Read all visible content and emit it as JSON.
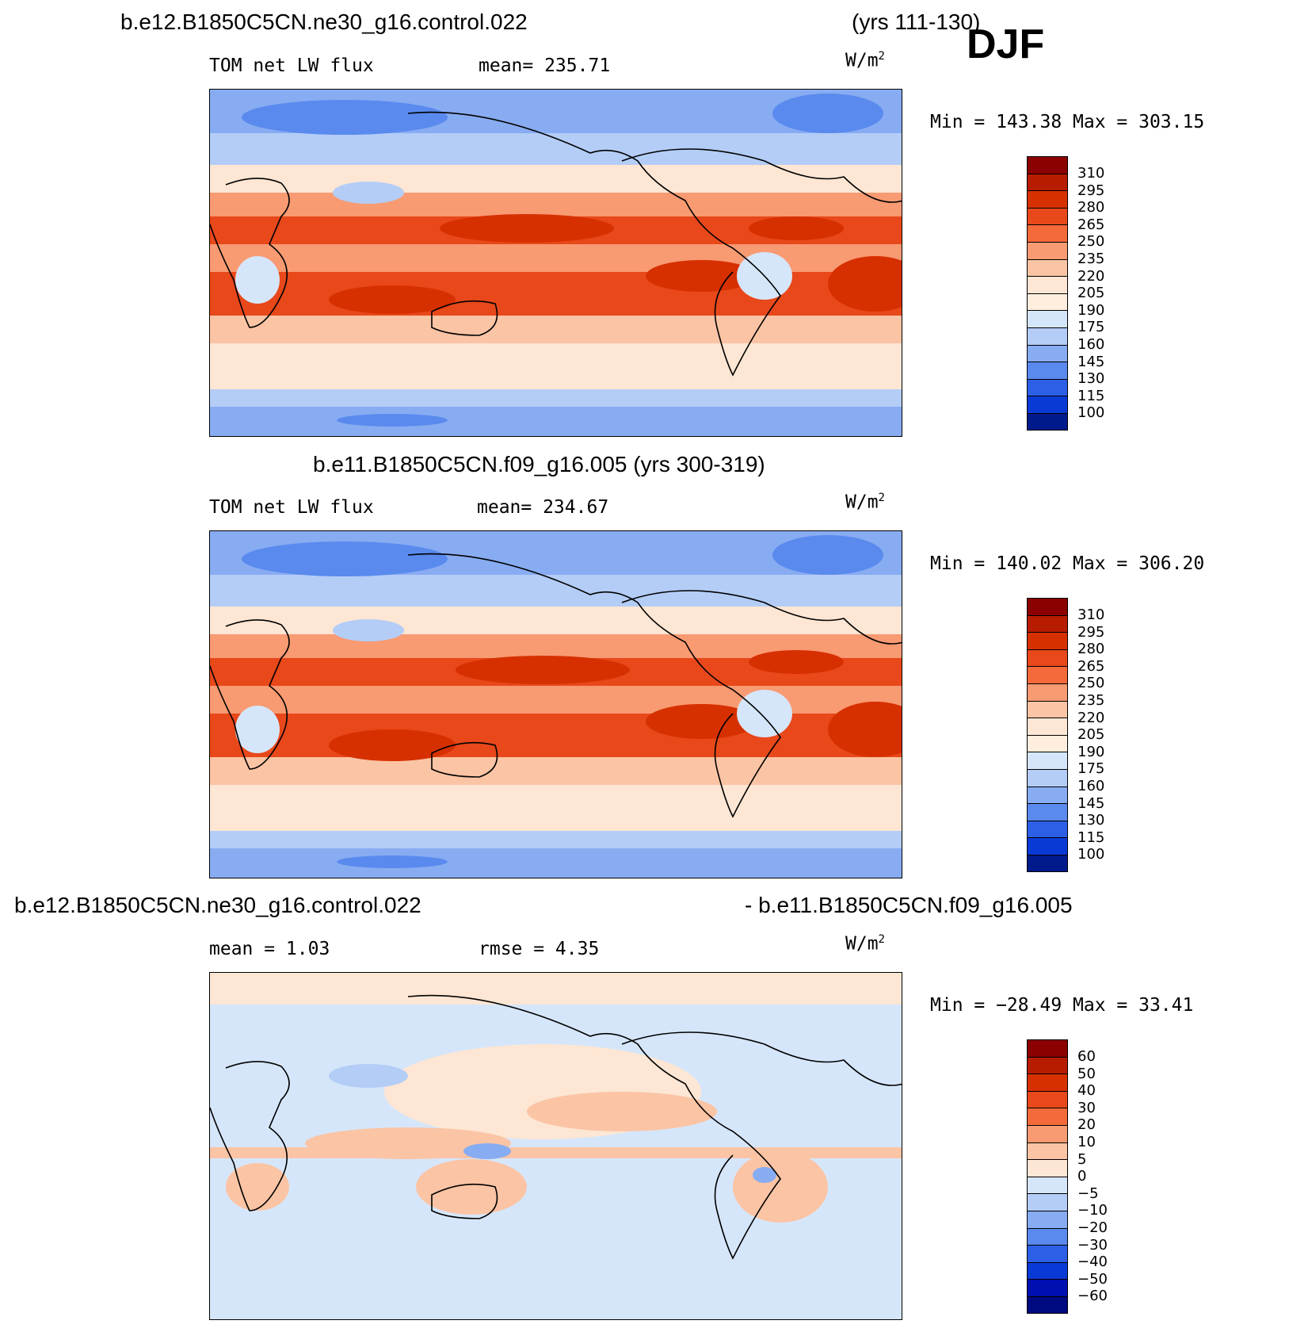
{
  "header": {
    "case1_title": "b.e12.B1850C5CN.ne30_g16.control.022",
    "case1_years": "(yrs 111-130)",
    "season": "DJF",
    "case2_title": "b.e11.B1850C5CN.f09_g16.005 (yrs 300-319)",
    "diff_title_left": "b.e12.B1850C5CN.ne30_g16.control.022",
    "diff_title_right": "- b.e11.B1850C5CN.f09_g16.005"
  },
  "panels": [
    {
      "variable": "TOM net LW flux",
      "stat_label": "mean= 235.71",
      "units_base": "W/m",
      "units_exp": "2",
      "minmax": "Min = 143.38 Max = 303.15"
    },
    {
      "variable": "TOM net LW flux",
      "stat_label": "mean= 234.67",
      "units_base": "W/m",
      "units_exp": "2",
      "minmax": "Min = 140.02 Max = 306.20"
    },
    {
      "mean_label": "mean =    1.03",
      "rmse_label": "rmse =    4.35",
      "units_base": "W/m",
      "units_exp": "2",
      "minmax": "Min = −28.49 Max =   33.41"
    }
  ],
  "colorbars": {
    "absolute": {
      "labels": [
        "310",
        "295",
        "280",
        "265",
        "250",
        "235",
        "220",
        "205",
        "190",
        "175",
        "160",
        "145",
        "130",
        "115",
        "100"
      ],
      "colors": [
        "#8b0000",
        "#b81c00",
        "#d73000",
        "#e8481a",
        "#f56a3a",
        "#f89a72",
        "#fbc4a4",
        "#fde6d4",
        "#ffeedd",
        "#d6e6fa",
        "#b4cdf7",
        "#88acf2",
        "#5a8aee",
        "#2c5fe6",
        "#0a3ad6",
        "#001a8c"
      ]
    },
    "difference": {
      "labels": [
        "60",
        "50",
        "40",
        "30",
        "20",
        "10",
        "5",
        "0",
        "−5",
        "−10",
        "−20",
        "−30",
        "−40",
        "−50",
        "−60"
      ],
      "colors": [
        "#8b0000",
        "#b81c00",
        "#d73000",
        "#e8481a",
        "#f56a3a",
        "#f89a72",
        "#fbc4a4",
        "#fde6d4",
        "#d6e6fa",
        "#b4cdf7",
        "#88acf2",
        "#5a8aee",
        "#2c5fe6",
        "#0a3ad6",
        "#0010b0",
        "#000a80"
      ]
    }
  }
}
